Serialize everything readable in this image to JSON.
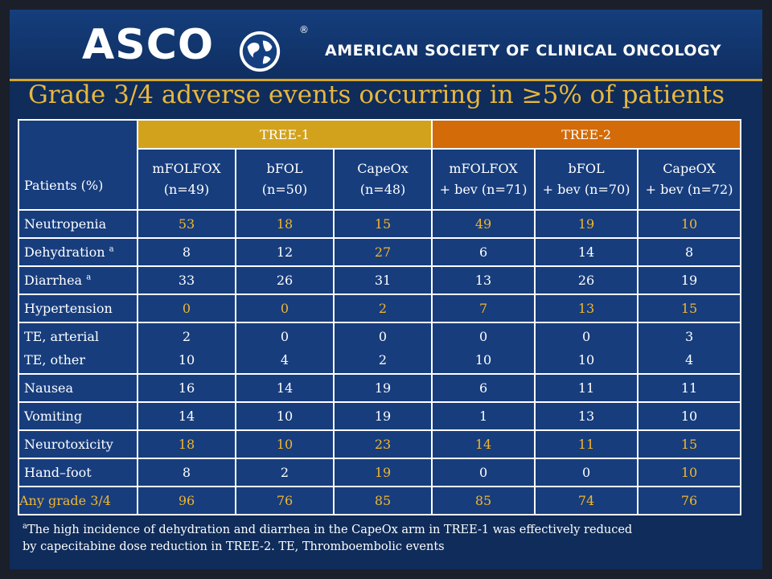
{
  "header": {
    "logo_text": "ASCO",
    "registered_mark": "®",
    "org_name": "AMERICAN SOCIETY OF CLINICAL ONCOLOGY"
  },
  "title": "Grade 3/4 adverse events occurring in ≥5% of patients",
  "table": {
    "corner_label": "Patients (%)",
    "groups": [
      "TREE-1",
      "TREE-2"
    ],
    "columns": [
      {
        "name": "mFOLFOX",
        "n": "(n=49)"
      },
      {
        "name": "bFOL",
        "n": "(n=50)"
      },
      {
        "name": "CapeOx",
        "n": "(n=48)"
      },
      {
        "name": "mFOLFOX",
        "n": "+ bev (n=71)"
      },
      {
        "name": "bFOL",
        "n": "+ bev (n=70)"
      },
      {
        "name": "CapeOX",
        "n": "+ bev (n=72)"
      }
    ],
    "rows": [
      {
        "label": "Neutropenia",
        "values": [
          "53",
          "18",
          "15",
          "49",
          "19",
          "10"
        ]
      },
      {
        "label": "Dehydration",
        "sup": "a",
        "values": [
          "8",
          "12",
          "27",
          "6",
          "14",
          "8"
        ]
      },
      {
        "label": "Diarrhea",
        "sup": "a",
        "values": [
          "33",
          "26",
          "31",
          "13",
          "26",
          "19"
        ]
      },
      {
        "label": "Hypertension",
        "values": [
          "0",
          "0",
          "2",
          "7",
          "13",
          "15"
        ]
      },
      {
        "label": "TE, arterial",
        "label2": "TE, other",
        "values": [
          "2",
          "0",
          "0",
          "0",
          "0",
          "3"
        ],
        "values2": [
          "10",
          "4",
          "2",
          "10",
          "10",
          "4"
        ]
      },
      {
        "label": "Nausea",
        "values": [
          "16",
          "14",
          "19",
          "6",
          "11",
          "11"
        ]
      },
      {
        "label": "Vomiting",
        "values": [
          "14",
          "10",
          "19",
          "1",
          "13",
          "10"
        ]
      },
      {
        "label": "Neurotoxicity",
        "values": [
          "18",
          "10",
          "23",
          "14",
          "11",
          "15"
        ]
      },
      {
        "label": "Hand–foot",
        "values": [
          "8",
          "2",
          "19",
          "0",
          "0",
          "10"
        ]
      },
      {
        "label": "Any grade 3/4",
        "values": [
          "96",
          "76",
          "85",
          "85",
          "74",
          "76"
        ]
      }
    ]
  },
  "footnote": {
    "sup": "a",
    "line1": "The high incidence of dehydration and diarrhea in the CapeOx arm in TREE-1 was effectively reduced",
    "line2": "by capecitabine dose reduction in TREE-2. TE, Thromboembolic events"
  },
  "colors": {
    "background": "#0f2c5a",
    "highlight": "#f2b62e",
    "tree1_header": "#d3a21c",
    "tree2_header": "#d36b08"
  }
}
